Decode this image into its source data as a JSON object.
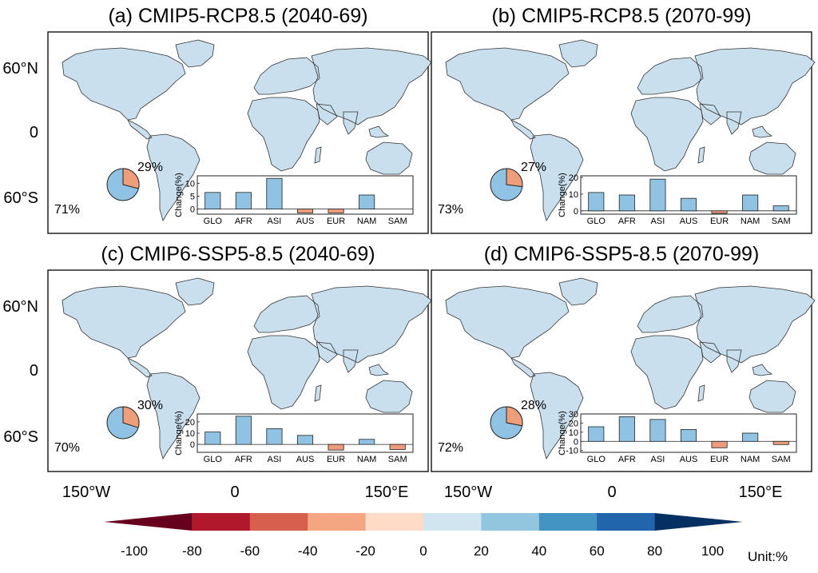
{
  "colors": {
    "land_default": "#c9dfee",
    "neg_light": "#f6c7ac",
    "neg_mid": "#ea9a76",
    "neg_strong": "#cc5a4e",
    "pos_light": "#9ecbe6",
    "pos_mid": "#5b9fd0",
    "pos_strong": "#2a69ad",
    "bar_pos": "#8fc2e3",
    "bar_neg": "#ec9b7c",
    "pie_neg": "#ef9e7c",
    "pie_pos": "#8fc2e3"
  },
  "colorbar": {
    "colors": [
      "#67001f",
      "#b2182b",
      "#d6604d",
      "#f4a582",
      "#fddbc7",
      "#d1e5f0",
      "#92c5de",
      "#4393c3",
      "#2166ac",
      "#053061"
    ],
    "ticks": [
      "-100",
      "-80",
      "-60",
      "-40",
      "-20",
      "0",
      "20",
      "40",
      "60",
      "80",
      "100"
    ],
    "unit": "Unit:%"
  },
  "axes": {
    "lat_labels": [
      "60°N",
      "0",
      "60°S"
    ],
    "lon_labels": [
      "150°W",
      "0",
      "150°E"
    ]
  },
  "chart_data": [
    {
      "type": "bar",
      "title": "(a) CMIP5-RCP8.5 (2040-69)",
      "pie": {
        "values": [
          29,
          71
        ],
        "labels": [
          "29%",
          "71%"
        ]
      },
      "ylabel": "Change(%)",
      "categories": [
        "GLO",
        "AFR",
        "ASI",
        "AUS",
        "EUR",
        "NAM",
        "SAM"
      ],
      "values": [
        6.5,
        6.5,
        12,
        -1.5,
        -1.5,
        5.5,
        0
      ],
      "yticks": [
        "0",
        "5",
        "10"
      ],
      "ylim": [
        -2,
        13
      ]
    },
    {
      "type": "bar",
      "title": "(b) CMIP5-RCP8.5 (2070-99)",
      "pie": {
        "values": [
          27,
          73
        ],
        "labels": [
          "27%",
          "73%"
        ]
      },
      "ylabel": "Change(%)",
      "categories": [
        "GLO",
        "AFR",
        "ASI",
        "AUS",
        "EUR",
        "NAM",
        "SAM"
      ],
      "values": [
        11,
        9.5,
        19,
        7.5,
        -1.5,
        9.5,
        3
      ],
      "yticks": [
        "0",
        "10",
        "20"
      ],
      "ylim": [
        -2,
        21
      ]
    },
    {
      "type": "bar",
      "title": "(c) CMIP6-SSP5-8.5 (2040-69)",
      "pie": {
        "values": [
          30,
          70
        ],
        "labels": [
          "30%",
          "70%"
        ]
      },
      "ylabel": "Change(%)",
      "categories": [
        "GLO",
        "AFR",
        "ASI",
        "AUS",
        "EUR",
        "NAM",
        "SAM"
      ],
      "values": [
        11,
        25,
        14,
        8,
        -5,
        4.5,
        -4.5
      ],
      "yticks": [
        "0",
        "10",
        "20"
      ],
      "ylim": [
        -7,
        27
      ]
    },
    {
      "type": "bar",
      "title": "(d) CMIP6-SSP5-8.5 (2070-99)",
      "pie": {
        "values": [
          28,
          72
        ],
        "labels": [
          "28%",
          "72%"
        ]
      },
      "ylabel": "Change(%)",
      "categories": [
        "GLO",
        "AFR",
        "ASI",
        "AUS",
        "EUR",
        "NAM",
        "SAM"
      ],
      "values": [
        16,
        27,
        24,
        13,
        -7,
        9,
        -3.5
      ],
      "yticks": [
        "-10",
        "0",
        "10",
        "20",
        "30"
      ],
      "ylim": [
        -12,
        30
      ]
    }
  ]
}
